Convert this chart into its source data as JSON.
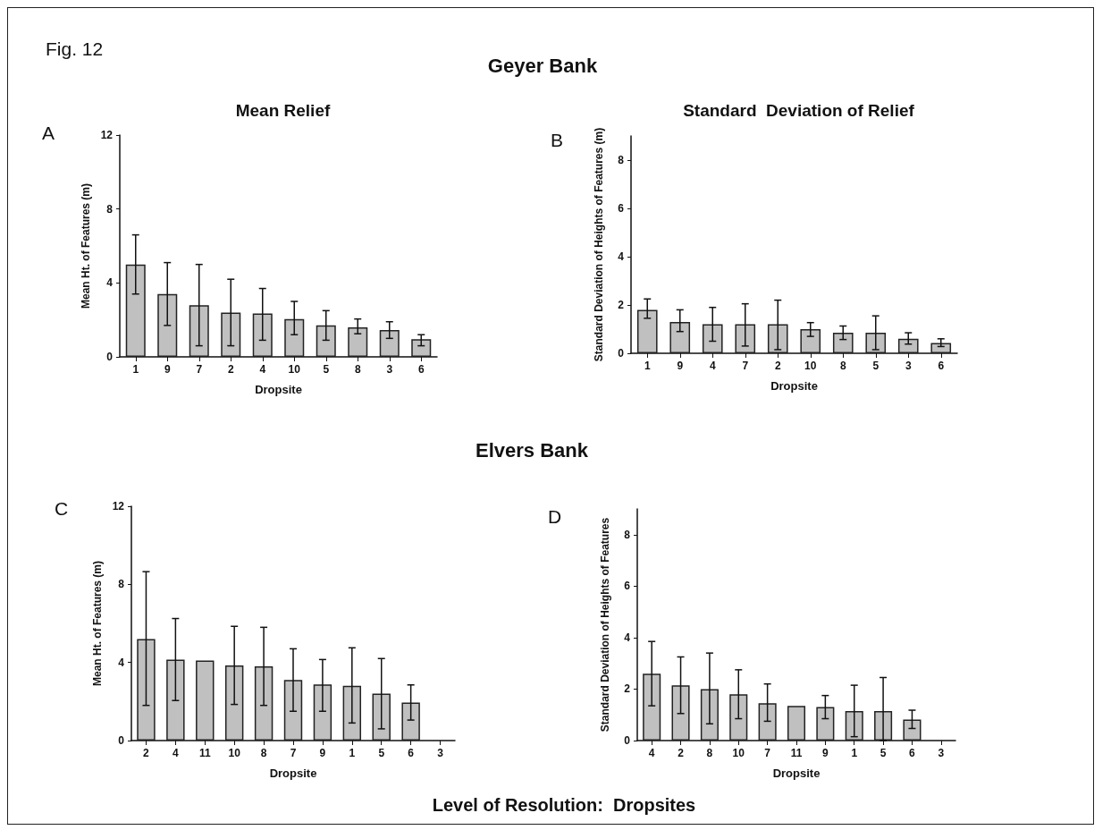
{
  "chart_data": [
    {
      "type": "bar",
      "title": "Mean Relief",
      "xlabel": "Dropsite",
      "ylabel": "Mean Ht. of Features (m)",
      "categories": [
        "1",
        "9",
        "7",
        "2",
        "4",
        "10",
        "5",
        "8",
        "3",
        "6"
      ],
      "values": [
        5.0,
        3.4,
        2.8,
        2.4,
        2.35,
        2.05,
        1.7,
        1.6,
        1.45,
        0.95
      ],
      "errors": [
        [
          3.4,
          6.6
        ],
        [
          1.7,
          5.1
        ],
        [
          0.6,
          5.0
        ],
        [
          0.6,
          4.2
        ],
        [
          0.9,
          3.7
        ],
        [
          1.2,
          3.0
        ],
        [
          0.9,
          2.5
        ],
        [
          1.25,
          2.05
        ],
        [
          1.0,
          1.9
        ],
        [
          0.6,
          1.2
        ]
      ],
      "color": "#c0c0c0",
      "ylim": [
        0,
        12
      ],
      "yticks": [
        0,
        4,
        8,
        12
      ],
      "grid": false,
      "annotations": [
        "Fig. 12",
        "Geyer Bank",
        "A"
      ]
    },
    {
      "type": "bar",
      "title": "Standard  Deviation of Relief",
      "xlabel": "Dropsite",
      "ylabel": "Standard Deviation of Heights of Features (m)",
      "categories": [
        "1",
        "9",
        "4",
        "7",
        "2",
        "10",
        "8",
        "5",
        "3",
        "6"
      ],
      "values": [
        1.8,
        1.3,
        1.2,
        1.2,
        1.2,
        1.0,
        0.85,
        0.85,
        0.6,
        0.43
      ],
      "errors": [
        [
          1.45,
          2.25
        ],
        [
          0.9,
          1.8
        ],
        [
          0.5,
          1.9
        ],
        [
          0.3,
          2.05
        ],
        [
          0.15,
          2.2
        ],
        [
          0.7,
          1.27
        ],
        [
          0.57,
          1.13
        ],
        [
          0.15,
          1.55
        ],
        [
          0.38,
          0.85
        ],
        [
          0.28,
          0.6
        ]
      ],
      "color": "#c0c0c0",
      "ylim": [
        0,
        9
      ],
      "yticks": [
        0,
        2,
        4,
        6,
        8
      ],
      "grid": false,
      "annotations": [
        "B"
      ]
    },
    {
      "type": "bar",
      "xlabel": "Dropsite",
      "ylabel": "Mean Ht. of Features (m)",
      "categories": [
        "2",
        "4",
        "11",
        "10",
        "8",
        "7",
        "9",
        "1",
        "5",
        "6",
        "3"
      ],
      "values": [
        5.2,
        4.15,
        4.1,
        3.85,
        3.8,
        3.1,
        2.87,
        2.8,
        2.4,
        1.95,
        null
      ],
      "errors": [
        [
          1.8,
          8.65
        ],
        [
          2.05,
          6.25
        ],
        null,
        [
          1.85,
          5.85
        ],
        [
          1.8,
          5.8
        ],
        [
          1.5,
          4.7
        ],
        [
          1.5,
          4.15
        ],
        [
          0.9,
          4.75
        ],
        [
          0.6,
          4.2
        ],
        [
          1.05,
          2.85
        ],
        null
      ],
      "color": "#c0c0c0",
      "ylim": [
        0,
        12
      ],
      "yticks": [
        0,
        4,
        8,
        12
      ],
      "grid": false,
      "annotations": [
        "Elvers Bank",
        "C",
        "Level of Resolution:  Dropsites"
      ]
    },
    {
      "type": "bar",
      "xlabel": "Dropsite",
      "ylabel": "Standard Deviation of Heights of Features",
      "categories": [
        "4",
        "2",
        "8",
        "10",
        "7",
        "11",
        "9",
        "1",
        "5",
        "6",
        "3"
      ],
      "values": [
        2.6,
        2.15,
        2.0,
        1.8,
        1.45,
        1.35,
        1.3,
        1.15,
        1.15,
        0.82,
        null
      ],
      "errors": [
        [
          1.35,
          3.85
        ],
        [
          1.05,
          3.25
        ],
        [
          0.65,
          3.4
        ],
        [
          0.85,
          2.75
        ],
        [
          0.75,
          2.2
        ],
        null,
        [
          0.85,
          1.75
        ],
        [
          0.15,
          2.15
        ],
        [
          0,
          2.45
        ],
        [
          0.47,
          1.18
        ],
        null
      ],
      "color": "#c0c0c0",
      "ylim": [
        0,
        9
      ],
      "yticks": [
        0,
        2,
        4,
        6,
        8
      ],
      "grid": false,
      "annotations": [
        "D"
      ]
    }
  ]
}
